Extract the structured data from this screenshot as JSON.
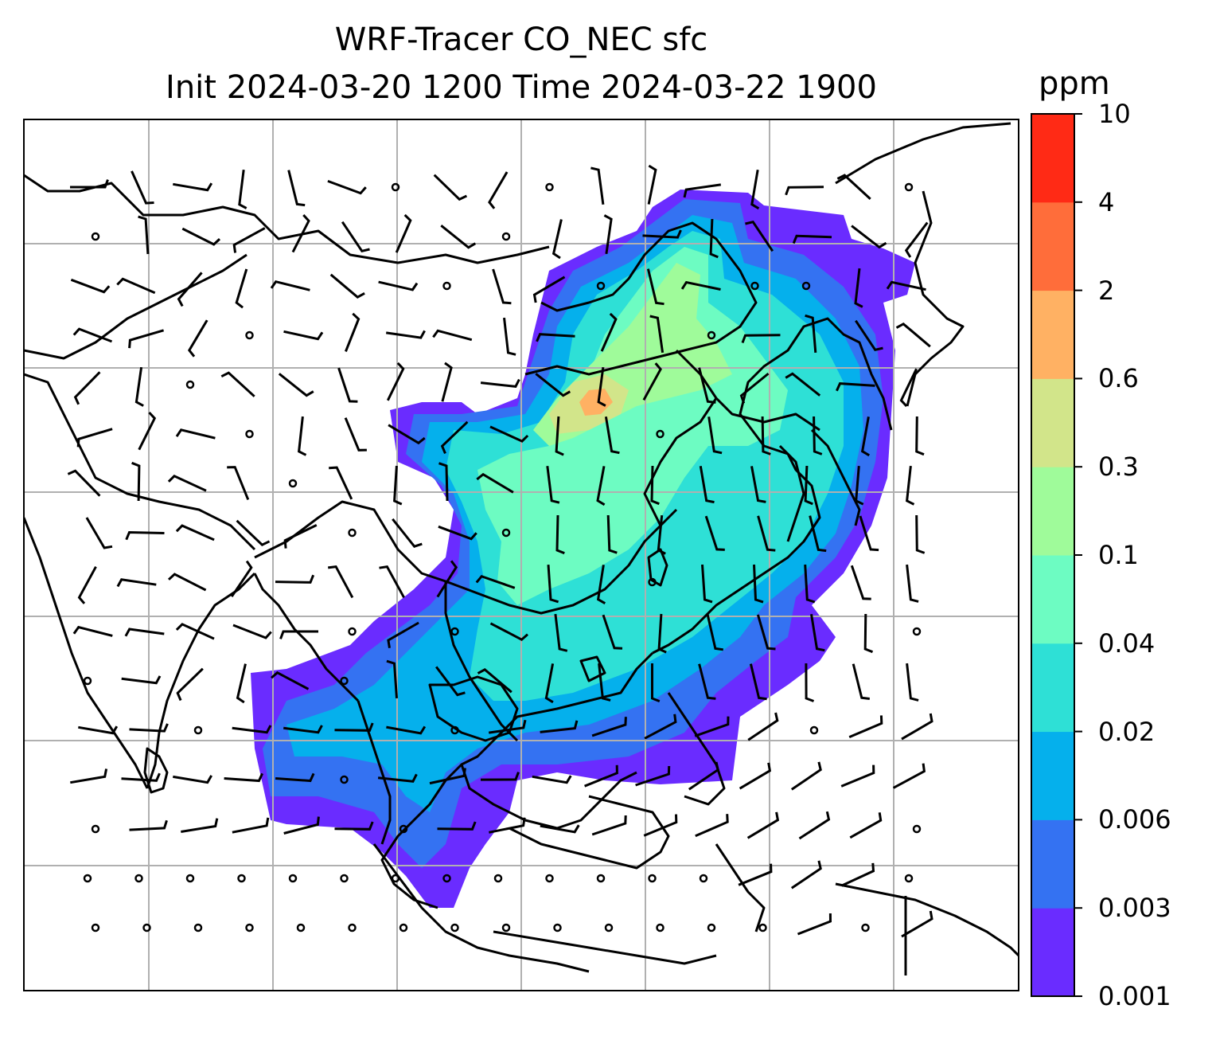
{
  "title_line1": "WRF-Tracer CO_NEC sfc",
  "title_line2": "Init 2024-03-20 1200 Time 2024-03-22 1900",
  "colorbar": {
    "unit": "ppm",
    "ticks": [
      "0.001",
      "0.003",
      "0.006",
      "0.02",
      "0.04",
      "0.1",
      "0.3",
      "0.6",
      "2",
      "4",
      "10"
    ],
    "colors": [
      "#6a2cff",
      "#3472f2",
      "#05b0ec",
      "#2ee0d6",
      "#6dfcc2",
      "#9ffb9a",
      "#d2e58a",
      "#ffb163",
      "#ff6d3a",
      "#ff2a15"
    ]
  },
  "map": {
    "gridlines": true,
    "land_outline_color": "#000000",
    "gridline_color": "#b0b0b0",
    "wind_symbols": "barbs"
  }
}
